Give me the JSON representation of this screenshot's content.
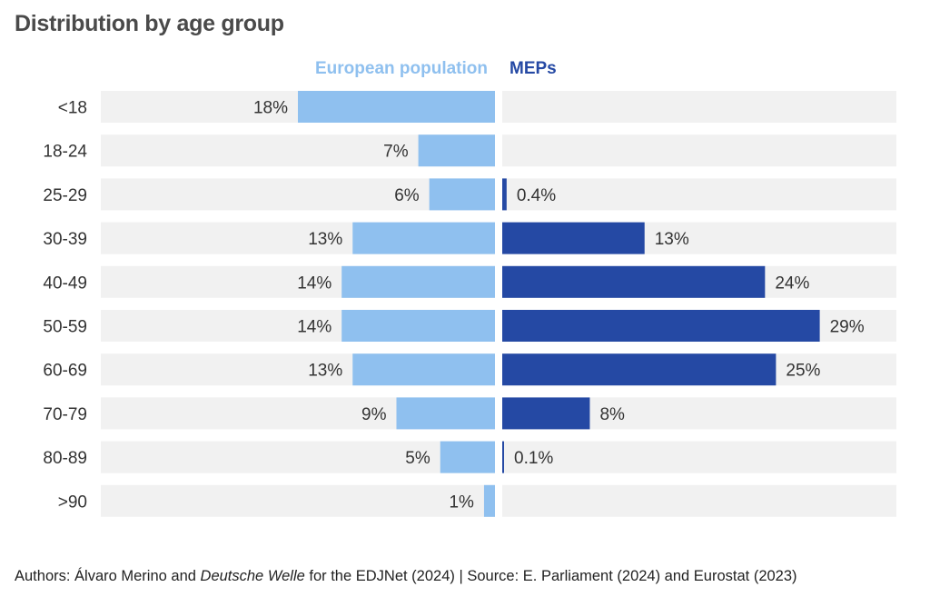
{
  "title": "Distribution by age group",
  "footer": {
    "authors_prefix": "Authors: Álvaro Merino and ",
    "authors_italic": "Deutsche Welle",
    "authors_suffix": " for the EDJNet (2024)",
    "source": " | Source: E. Parliament (2024) and Eurostat (2023)"
  },
  "colors": {
    "european_population": "#8fc0ef",
    "meps": "#2549a4",
    "track": "#f1f1f1",
    "label": "#333333"
  },
  "chart_data": {
    "type": "bar",
    "orientation": "horizontal-diverging",
    "categories": [
      "<18",
      "18-24",
      "25-29",
      "30-39",
      "40-49",
      "50-59",
      "60-69",
      "70-79",
      "80-89",
      ">90"
    ],
    "series": [
      {
        "name": "European population",
        "side": "left",
        "values": [
          18,
          7,
          6,
          13,
          14,
          14,
          13,
          9,
          5,
          1
        ],
        "labels": [
          "18%",
          "7%",
          "6%",
          "13%",
          "14%",
          "14%",
          "13%",
          "9%",
          "5%",
          "1%"
        ]
      },
      {
        "name": "MEPs",
        "side": "right",
        "values": [
          null,
          null,
          0.4,
          13,
          24,
          29,
          25,
          8,
          0.1,
          null
        ],
        "labels": [
          "",
          "",
          "0.4%",
          "13%",
          "24%",
          "29%",
          "25%",
          "8%",
          "0.1%",
          ""
        ]
      }
    ],
    "xlim": [
      0,
      36
    ]
  }
}
